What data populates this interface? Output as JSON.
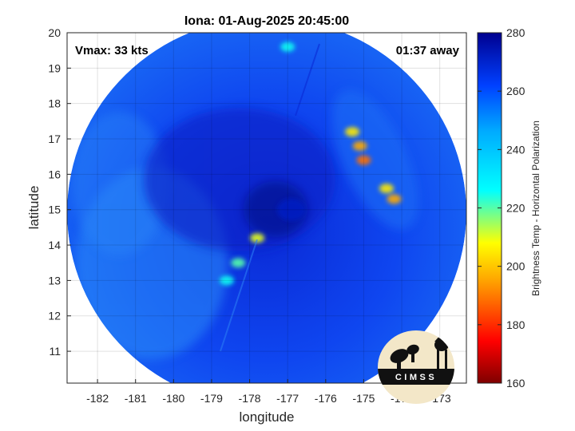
{
  "chart_data": {
    "type": "heatmap",
    "title": "Iona: 01-Aug-2025 20:45:00",
    "xlabel": "longitude",
    "ylabel": "latitude",
    "xlim": [
      -182.8,
      -172.3
    ],
    "ylim": [
      10.1,
      20.0
    ],
    "xticks": [
      -182,
      -181,
      -180,
      -179,
      -178,
      -177,
      -176,
      -175,
      -174,
      -173
    ],
    "yticks": [
      11,
      12,
      13,
      14,
      15,
      16,
      17,
      18,
      19,
      20
    ],
    "grid": true,
    "annotations": {
      "left": "Vmax: 33 kts",
      "right": "01:37 away"
    },
    "colorbar": {
      "label": "Brightness Temp - Horizontal Polarization",
      "range": [
        160,
        280
      ],
      "ticks": [
        160,
        180,
        200,
        220,
        240,
        260,
        280
      ],
      "colormap": [
        "#7f0000",
        "#ff0000",
        "#ffff00",
        "#00ffff",
        "#0066ff",
        "#00008f"
      ]
    },
    "swath": {
      "center_lon": -177.5,
      "center_lat": 15.2,
      "background_value": 262,
      "features": [
        {
          "lon": -175.0,
          "lat": 16.4,
          "value": 188
        },
        {
          "lon": -175.1,
          "lat": 16.8,
          "value": 195
        },
        {
          "lon": -175.3,
          "lat": 17.2,
          "value": 205
        },
        {
          "lon": -174.2,
          "lat": 15.3,
          "value": 195
        },
        {
          "lon": -174.4,
          "lat": 15.6,
          "value": 205
        },
        {
          "lon": -177.8,
          "lat": 14.2,
          "value": 210
        },
        {
          "lon": -178.3,
          "lat": 13.5,
          "value": 220
        },
        {
          "lon": -178.6,
          "lat": 13.0,
          "value": 225
        },
        {
          "lon": -177.0,
          "lat": 19.6,
          "value": 225
        },
        {
          "lon": -176.9,
          "lat": 15.0,
          "value": 272
        }
      ]
    }
  },
  "logo": {
    "text": "CIMSS"
  }
}
